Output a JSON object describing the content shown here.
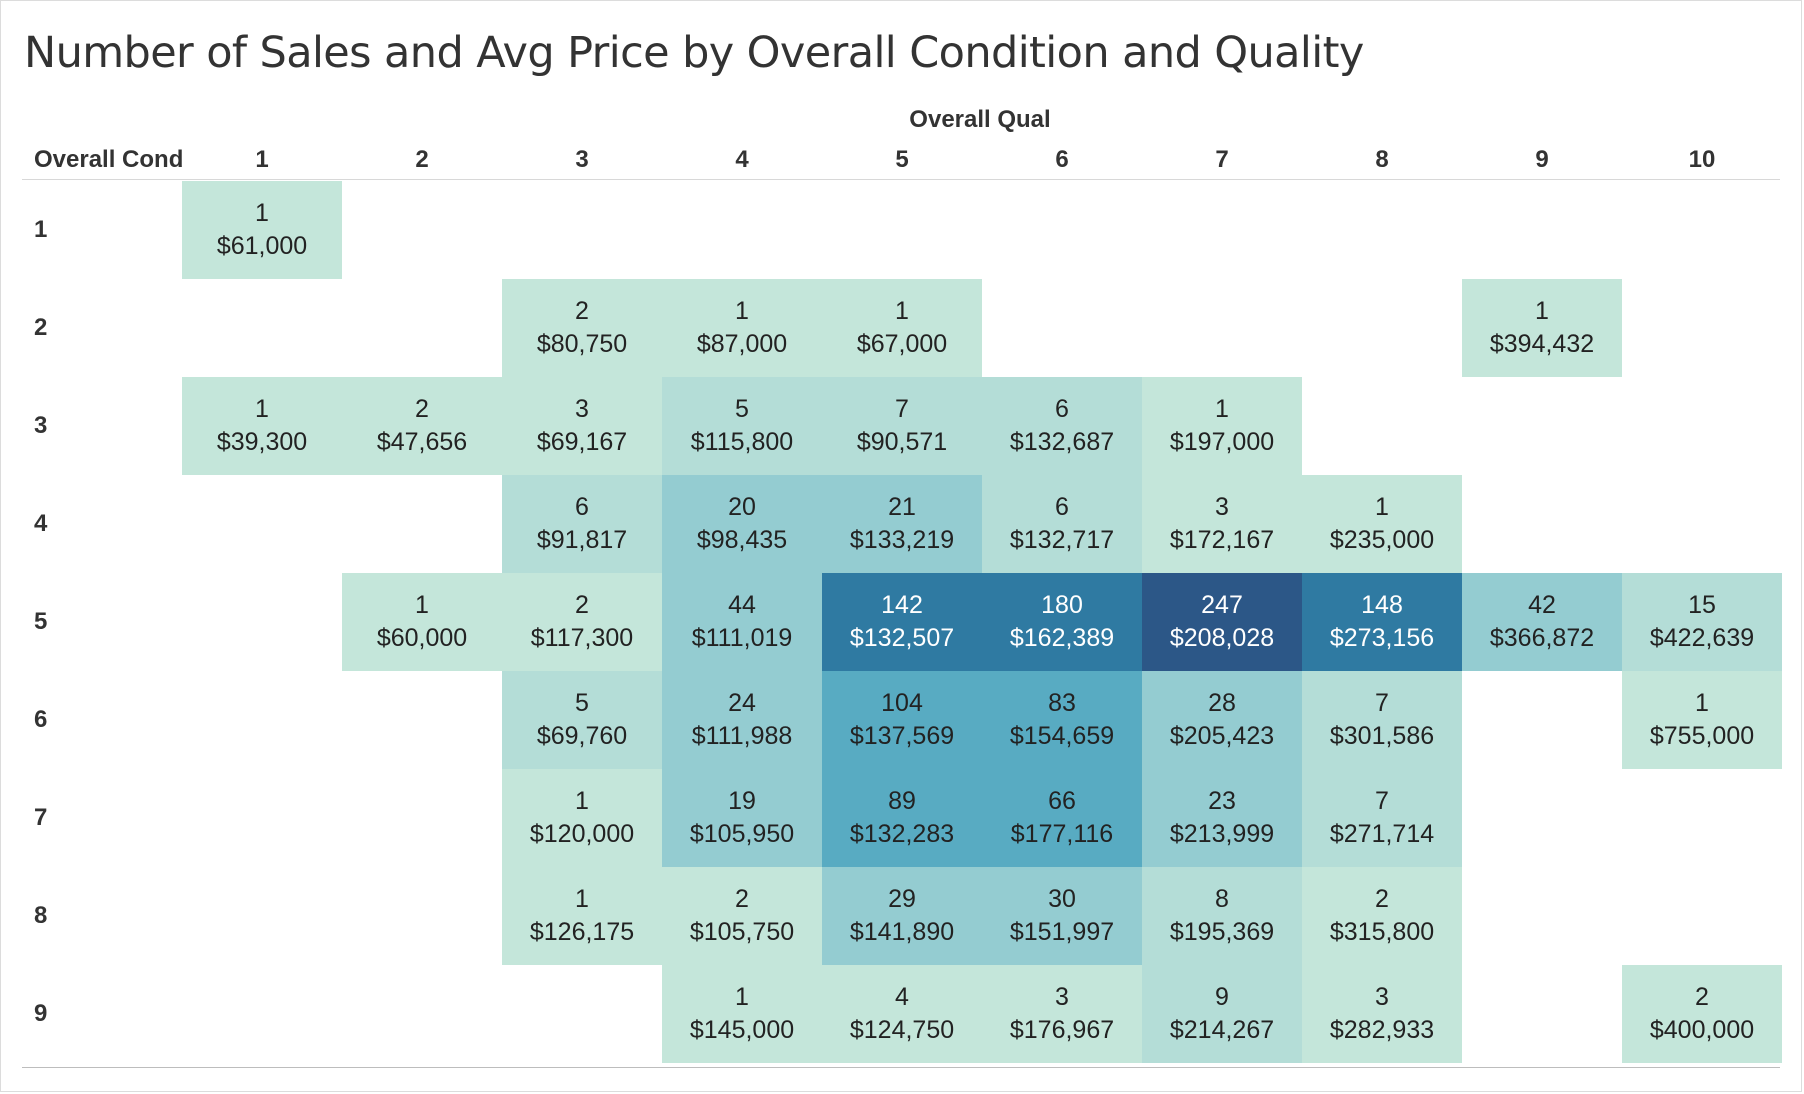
{
  "chart_data": {
    "type": "heatmap",
    "title": "Number of Sales and Avg Price by Overall Condition and Quality",
    "column_axis_title": "Overall Qual",
    "row_axis_title": "Overall Cond",
    "columns": [
      "1",
      "2",
      "3",
      "4",
      "5",
      "6",
      "7",
      "8",
      "9",
      "10"
    ],
    "rows": [
      "1",
      "2",
      "3",
      "4",
      "5",
      "6",
      "7",
      "8",
      "9"
    ],
    "color_scale": [
      "#c4e6da",
      "#b4ddd7",
      "#94ccd1",
      "#58abc2",
      "#2f7aa2",
      "#2c5787"
    ],
    "cells": [
      {
        "cond": "1",
        "qual": "1",
        "count": "1",
        "price": "$61,000"
      },
      {
        "cond": "2",
        "qual": "3",
        "count": "2",
        "price": "$80,750"
      },
      {
        "cond": "2",
        "qual": "4",
        "count": "1",
        "price": "$87,000"
      },
      {
        "cond": "2",
        "qual": "5",
        "count": "1",
        "price": "$67,000"
      },
      {
        "cond": "2",
        "qual": "9",
        "count": "1",
        "price": "$394,432"
      },
      {
        "cond": "3",
        "qual": "1",
        "count": "1",
        "price": "$39,300"
      },
      {
        "cond": "3",
        "qual": "2",
        "count": "2",
        "price": "$47,656"
      },
      {
        "cond": "3",
        "qual": "3",
        "count": "3",
        "price": "$69,167"
      },
      {
        "cond": "3",
        "qual": "4",
        "count": "5",
        "price": "$115,800"
      },
      {
        "cond": "3",
        "qual": "5",
        "count": "7",
        "price": "$90,571"
      },
      {
        "cond": "3",
        "qual": "6",
        "count": "6",
        "price": "$132,687"
      },
      {
        "cond": "3",
        "qual": "7",
        "count": "1",
        "price": "$197,000"
      },
      {
        "cond": "4",
        "qual": "3",
        "count": "6",
        "price": "$91,817"
      },
      {
        "cond": "4",
        "qual": "4",
        "count": "20",
        "price": "$98,435"
      },
      {
        "cond": "4",
        "qual": "5",
        "count": "21",
        "price": "$133,219"
      },
      {
        "cond": "4",
        "qual": "6",
        "count": "6",
        "price": "$132,717"
      },
      {
        "cond": "4",
        "qual": "7",
        "count": "3",
        "price": "$172,167"
      },
      {
        "cond": "4",
        "qual": "8",
        "count": "1",
        "price": "$235,000"
      },
      {
        "cond": "5",
        "qual": "2",
        "count": "1",
        "price": "$60,000"
      },
      {
        "cond": "5",
        "qual": "3",
        "count": "2",
        "price": "$117,300"
      },
      {
        "cond": "5",
        "qual": "4",
        "count": "44",
        "price": "$111,019"
      },
      {
        "cond": "5",
        "qual": "5",
        "count": "142",
        "price": "$132,507"
      },
      {
        "cond": "5",
        "qual": "6",
        "count": "180",
        "price": "$162,389"
      },
      {
        "cond": "5",
        "qual": "7",
        "count": "247",
        "price": "$208,028"
      },
      {
        "cond": "5",
        "qual": "8",
        "count": "148",
        "price": "$273,156"
      },
      {
        "cond": "5",
        "qual": "9",
        "count": "42",
        "price": "$366,872"
      },
      {
        "cond": "5",
        "qual": "10",
        "count": "15",
        "price": "$422,639"
      },
      {
        "cond": "6",
        "qual": "3",
        "count": "5",
        "price": "$69,760"
      },
      {
        "cond": "6",
        "qual": "4",
        "count": "24",
        "price": "$111,988"
      },
      {
        "cond": "6",
        "qual": "5",
        "count": "104",
        "price": "$137,569"
      },
      {
        "cond": "6",
        "qual": "6",
        "count": "83",
        "price": "$154,659"
      },
      {
        "cond": "6",
        "qual": "7",
        "count": "28",
        "price": "$205,423"
      },
      {
        "cond": "6",
        "qual": "8",
        "count": "7",
        "price": "$301,586"
      },
      {
        "cond": "6",
        "qual": "10",
        "count": "1",
        "price": "$755,000"
      },
      {
        "cond": "7",
        "qual": "3",
        "count": "1",
        "price": "$120,000"
      },
      {
        "cond": "7",
        "qual": "4",
        "count": "19",
        "price": "$105,950"
      },
      {
        "cond": "7",
        "qual": "5",
        "count": "89",
        "price": "$132,283"
      },
      {
        "cond": "7",
        "qual": "6",
        "count": "66",
        "price": "$177,116"
      },
      {
        "cond": "7",
        "qual": "7",
        "count": "23",
        "price": "$213,999"
      },
      {
        "cond": "7",
        "qual": "8",
        "count": "7",
        "price": "$271,714"
      },
      {
        "cond": "8",
        "qual": "3",
        "count": "1",
        "price": "$126,175"
      },
      {
        "cond": "8",
        "qual": "4",
        "count": "2",
        "price": "$105,750"
      },
      {
        "cond": "8",
        "qual": "5",
        "count": "29",
        "price": "$141,890"
      },
      {
        "cond": "8",
        "qual": "6",
        "count": "30",
        "price": "$151,997"
      },
      {
        "cond": "8",
        "qual": "7",
        "count": "8",
        "price": "$195,369"
      },
      {
        "cond": "8",
        "qual": "8",
        "count": "2",
        "price": "$315,800"
      },
      {
        "cond": "9",
        "qual": "4",
        "count": "1",
        "price": "$145,000"
      },
      {
        "cond": "9",
        "qual": "5",
        "count": "4",
        "price": "$124,750"
      },
      {
        "cond": "9",
        "qual": "6",
        "count": "3",
        "price": "$176,967"
      },
      {
        "cond": "9",
        "qual": "7",
        "count": "9",
        "price": "$214,267"
      },
      {
        "cond": "9",
        "qual": "8",
        "count": "3",
        "price": "$282,933"
      },
      {
        "cond": "9",
        "qual": "10",
        "count": "2",
        "price": "$400,000"
      }
    ]
  }
}
